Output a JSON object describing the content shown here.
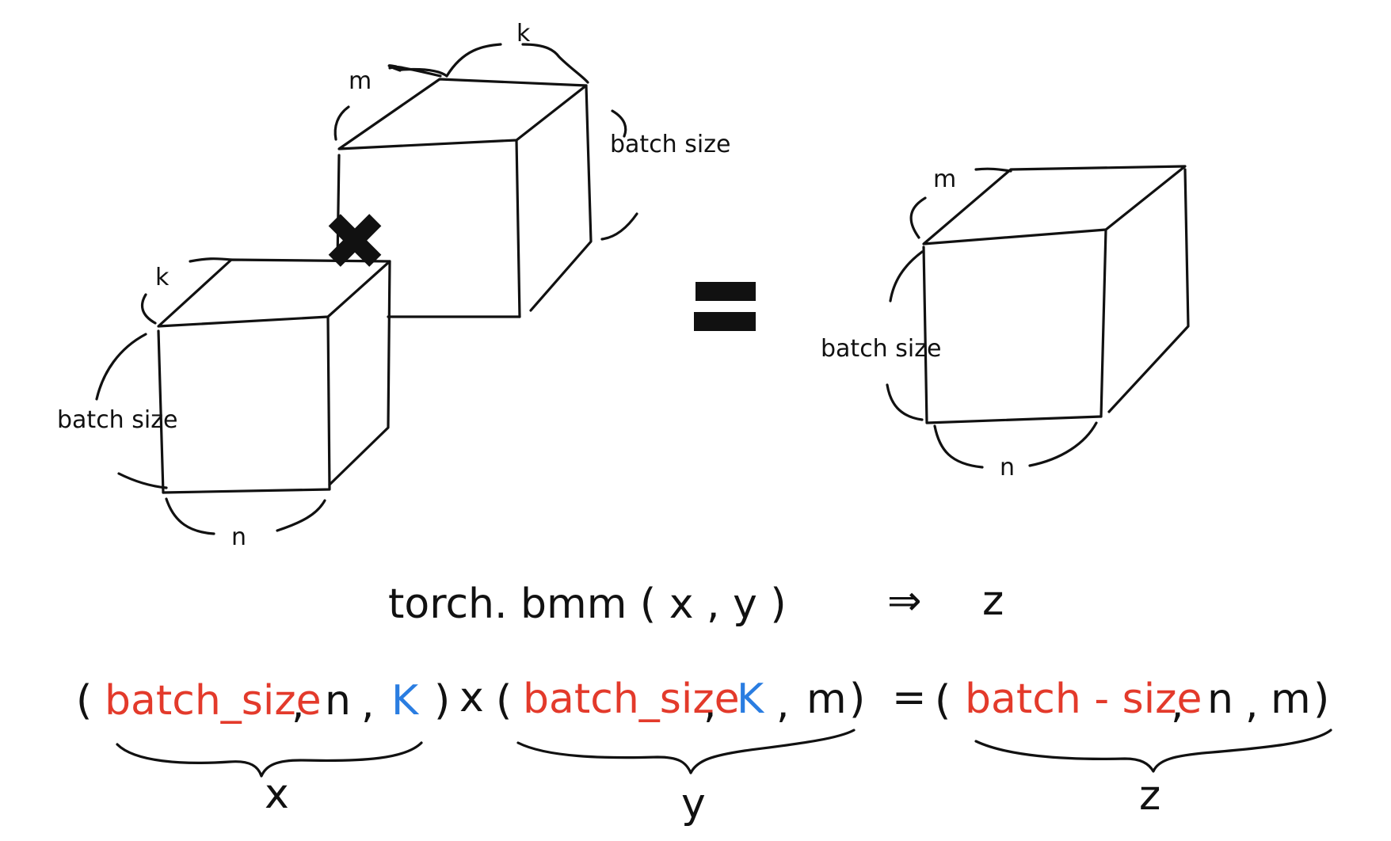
{
  "cube_left": {
    "depth_label": "k",
    "height_label": "batch size",
    "width_label": "n"
  },
  "cube_middle": {
    "depth_label": "m",
    "width_label": "k",
    "height_label": "batch size"
  },
  "cube_right": {
    "depth_label": "m",
    "height_label": "batch size",
    "width_label": "n"
  },
  "operator_multiply": "✖",
  "operator_equals": "=",
  "code_line": {
    "call": "torch. bmm ( x , y )",
    "arrow": "⇒",
    "result": "z"
  },
  "shape_line": {
    "x_shape": {
      "open": "(",
      "batch": "batch_size",
      "sep1": ",",
      "dim1": "n",
      "sep2": ",",
      "dim2": "K",
      "close": ")"
    },
    "times": "x",
    "y_shape": {
      "open": "(",
      "batch": "batch_size",
      "sep1": ",",
      "dim1": "K",
      "sep2": ",",
      "dim2": "m",
      "close": ")"
    },
    "equals": "=",
    "z_shape": {
      "open": "(",
      "batch": "batch - size",
      "sep1": ",",
      "dim1": "n",
      "sep2": ",",
      "dim2": "m",
      "close": ")"
    }
  },
  "brace_labels": {
    "x": "x",
    "y": "y",
    "z": "z"
  },
  "colors": {
    "batch": "#e33a2b",
    "k_dim": "#2a7de1",
    "ink": "#111111"
  }
}
